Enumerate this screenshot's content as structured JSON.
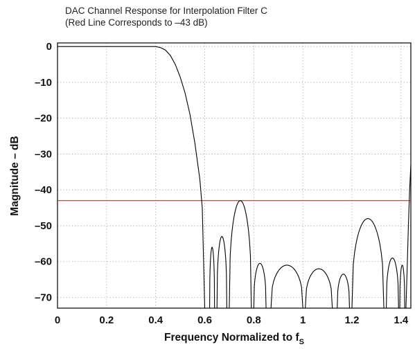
{
  "chart_data": {
    "type": "line",
    "title_lines": [
      "DAC Channel Response for Interpolation Filter C",
      "(Red Line Corresponds to –43 dB)"
    ],
    "xlabel": "Frequency Normalized to f",
    "xlabel_subscript": "S",
    "ylabel": "Magnitude – dB",
    "xlim": [
      0,
      1.44
    ],
    "ylim": [
      -73,
      1
    ],
    "x_ticks": [
      0,
      0.2,
      0.4,
      0.6,
      0.8,
      1,
      1.2,
      1.4
    ],
    "x_tick_labels": [
      "0",
      "0.2",
      "0.4",
      "0.6",
      "0.8",
      "1",
      "1.2",
      "1.4"
    ],
    "y_ticks": [
      0,
      -10,
      -20,
      -30,
      -40,
      -50,
      -60,
      -70
    ],
    "y_tick_labels": [
      "0",
      "–10",
      "–20",
      "–30",
      "–40",
      "–50",
      "–60",
      "–70"
    ],
    "grid": true,
    "colors": {
      "response": "#000000",
      "reference": "#d62728"
    },
    "reference_line": {
      "y": -43
    },
    "passband": {
      "x": [
        0,
        0.4
      ],
      "y": 0
    },
    "transition": {
      "x": [
        0.4,
        0.42,
        0.44,
        0.46,
        0.48,
        0.5,
        0.52,
        0.54,
        0.56,
        0.58,
        0.59,
        0.6
      ],
      "y": [
        0,
        -0.3,
        -1,
        -2.5,
        -5,
        -8.5,
        -13,
        -19,
        -27,
        -37,
        -45,
        -73
      ]
    },
    "lobes": [
      {
        "x0": 0.62,
        "x1": 0.64,
        "peak": -56
      },
      {
        "x0": 0.65,
        "x1": 0.69,
        "peak": -53
      },
      {
        "x0": 0.7,
        "x1": 0.79,
        "peak": -43
      },
      {
        "x0": 0.8,
        "x1": 0.85,
        "peak": -60.5
      },
      {
        "x0": 0.87,
        "x1": 1.0,
        "peak": -61
      },
      {
        "x0": 1.01,
        "x1": 1.12,
        "peak": -62
      },
      {
        "x0": 1.14,
        "x1": 1.19,
        "peak": -63.5
      },
      {
        "x0": 1.2,
        "x1": 1.33,
        "peak": -48
      },
      {
        "x0": 1.34,
        "x1": 1.39,
        "peak": -59
      },
      {
        "x0": 1.395,
        "x1": 1.415,
        "peak": -61
      }
    ],
    "rising_edge": {
      "x": [
        1.42,
        1.425,
        1.43,
        1.435,
        1.44
      ],
      "y": [
        -73,
        -62,
        -50,
        -40,
        -33
      ]
    }
  }
}
